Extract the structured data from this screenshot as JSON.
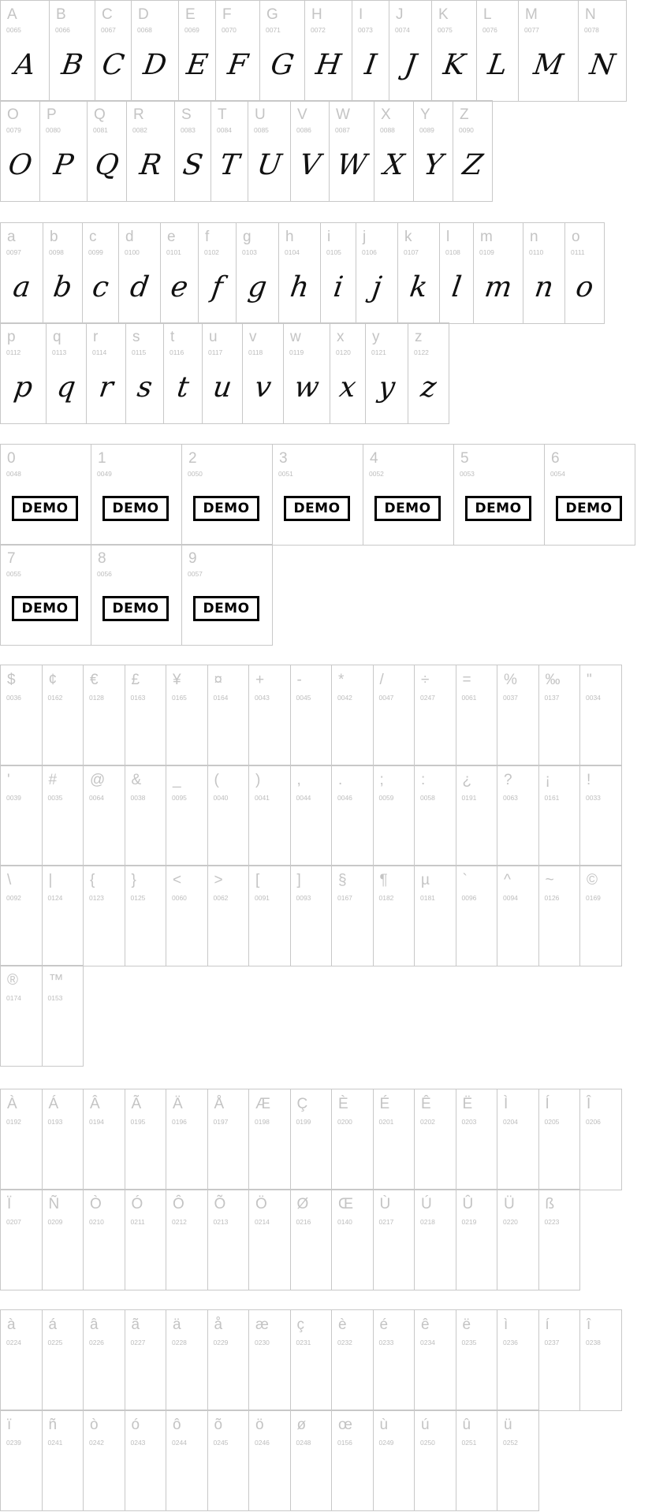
{
  "uppercase": [
    [
      {
        "c": "A",
        "code": "0065"
      },
      {
        "c": "B",
        "code": "0066"
      },
      {
        "c": "C",
        "code": "0067"
      },
      {
        "c": "D",
        "code": "0068"
      },
      {
        "c": "E",
        "code": "0069"
      },
      {
        "c": "F",
        "code": "0070"
      },
      {
        "c": "G",
        "code": "0071"
      },
      {
        "c": "H",
        "code": "0072"
      },
      {
        "c": "I",
        "code": "0073"
      },
      {
        "c": "J",
        "code": "0074"
      },
      {
        "c": "K",
        "code": "0075"
      },
      {
        "c": "L",
        "code": "0076"
      },
      {
        "c": "M",
        "code": "0077"
      },
      {
        "c": "N",
        "code": "0078"
      }
    ],
    [
      {
        "c": "O",
        "code": "0079"
      },
      {
        "c": "P",
        "code": "0080"
      },
      {
        "c": "Q",
        "code": "0081"
      },
      {
        "c": "R",
        "code": "0082"
      },
      {
        "c": "S",
        "code": "0083"
      },
      {
        "c": "T",
        "code": "0084"
      },
      {
        "c": "U",
        "code": "0085"
      },
      {
        "c": "V",
        "code": "0086"
      },
      {
        "c": "W",
        "code": "0087"
      },
      {
        "c": "X",
        "code": "0088"
      },
      {
        "c": "Y",
        "code": "0089"
      },
      {
        "c": "Z",
        "code": "0090"
      }
    ]
  ],
  "lowercase": [
    [
      {
        "c": "a",
        "code": "0097"
      },
      {
        "c": "b",
        "code": "0098"
      },
      {
        "c": "c",
        "code": "0099"
      },
      {
        "c": "d",
        "code": "0100"
      },
      {
        "c": "e",
        "code": "0101"
      },
      {
        "c": "f",
        "code": "0102"
      },
      {
        "c": "g",
        "code": "0103"
      },
      {
        "c": "h",
        "code": "0104"
      },
      {
        "c": "i",
        "code": "0105"
      },
      {
        "c": "j",
        "code": "0106"
      },
      {
        "c": "k",
        "code": "0107"
      },
      {
        "c": "l",
        "code": "0108"
      },
      {
        "c": "m",
        "code": "0109"
      },
      {
        "c": "n",
        "code": "0110"
      },
      {
        "c": "o",
        "code": "0111"
      }
    ],
    [
      {
        "c": "p",
        "code": "0112"
      },
      {
        "c": "q",
        "code": "0113"
      },
      {
        "c": "r",
        "code": "0114"
      },
      {
        "c": "s",
        "code": "0115"
      },
      {
        "c": "t",
        "code": "0116"
      },
      {
        "c": "u",
        "code": "0117"
      },
      {
        "c": "v",
        "code": "0118"
      },
      {
        "c": "w",
        "code": "0119"
      },
      {
        "c": "x",
        "code": "0120"
      },
      {
        "c": "y",
        "code": "0121"
      },
      {
        "c": "z",
        "code": "0122"
      }
    ]
  ],
  "digits": {
    "demo_label": "DEMO",
    "rows": [
      [
        {
          "c": "0",
          "code": "0048"
        },
        {
          "c": "1",
          "code": "0049"
        },
        {
          "c": "2",
          "code": "0050"
        },
        {
          "c": "3",
          "code": "0051"
        },
        {
          "c": "4",
          "code": "0052"
        },
        {
          "c": "5",
          "code": "0053"
        },
        {
          "c": "6",
          "code": "0054"
        }
      ],
      [
        {
          "c": "7",
          "code": "0055"
        },
        {
          "c": "8",
          "code": "0056"
        },
        {
          "c": "9",
          "code": "0057"
        }
      ]
    ]
  },
  "symbols": [
    [
      {
        "c": "$",
        "code": "0036"
      },
      {
        "c": "¢",
        "code": "0162"
      },
      {
        "c": "€",
        "code": "0128"
      },
      {
        "c": "£",
        "code": "0163"
      },
      {
        "c": "¥",
        "code": "0165"
      },
      {
        "c": "¤",
        "code": "0164"
      },
      {
        "c": "+",
        "code": "0043"
      },
      {
        "c": "-",
        "code": "0045"
      },
      {
        "c": "*",
        "code": "0042"
      },
      {
        "c": "/",
        "code": "0047"
      },
      {
        "c": "÷",
        "code": "0247"
      },
      {
        "c": "=",
        "code": "0061"
      },
      {
        "c": "%",
        "code": "0037"
      },
      {
        "c": "‰",
        "code": "0137"
      },
      {
        "c": "\"",
        "code": "0034"
      }
    ],
    [
      {
        "c": "'",
        "code": "0039"
      },
      {
        "c": "#",
        "code": "0035"
      },
      {
        "c": "@",
        "code": "0064"
      },
      {
        "c": "&",
        "code": "0038"
      },
      {
        "c": "_",
        "code": "0095"
      },
      {
        "c": "(",
        "code": "0040"
      },
      {
        "c": ")",
        "code": "0041"
      },
      {
        "c": ",",
        "code": "0044"
      },
      {
        "c": ".",
        "code": "0046"
      },
      {
        "c": ";",
        "code": "0059"
      },
      {
        "c": ":",
        "code": "0058"
      },
      {
        "c": "¿",
        "code": "0191"
      },
      {
        "c": "?",
        "code": "0063"
      },
      {
        "c": "¡",
        "code": "0161"
      },
      {
        "c": "!",
        "code": "0033"
      }
    ],
    [
      {
        "c": "\\",
        "code": "0092"
      },
      {
        "c": "|",
        "code": "0124"
      },
      {
        "c": "{",
        "code": "0123"
      },
      {
        "c": "}",
        "code": "0125"
      },
      {
        "c": "<",
        "code": "0060"
      },
      {
        "c": ">",
        "code": "0062"
      },
      {
        "c": "[",
        "code": "0091"
      },
      {
        "c": "]",
        "code": "0093"
      },
      {
        "c": "§",
        "code": "0167"
      },
      {
        "c": "¶",
        "code": "0182"
      },
      {
        "c": "µ",
        "code": "0181"
      },
      {
        "c": "`",
        "code": "0096"
      },
      {
        "c": "^",
        "code": "0094"
      },
      {
        "c": "~",
        "code": "0126"
      },
      {
        "c": "©",
        "code": "0169"
      }
    ],
    [
      {
        "c": "®",
        "code": "0174"
      },
      {
        "c": "™",
        "code": "0153"
      }
    ]
  ],
  "accented_upper": [
    [
      {
        "c": "À",
        "code": "0192"
      },
      {
        "c": "Á",
        "code": "0193"
      },
      {
        "c": "Â",
        "code": "0194"
      },
      {
        "c": "Ã",
        "code": "0195"
      },
      {
        "c": "Ä",
        "code": "0196"
      },
      {
        "c": "Å",
        "code": "0197"
      },
      {
        "c": "Æ",
        "code": "0198"
      },
      {
        "c": "Ç",
        "code": "0199"
      },
      {
        "c": "È",
        "code": "0200"
      },
      {
        "c": "É",
        "code": "0201"
      },
      {
        "c": "Ê",
        "code": "0202"
      },
      {
        "c": "Ë",
        "code": "0203"
      },
      {
        "c": "Ì",
        "code": "0204"
      },
      {
        "c": "Í",
        "code": "0205"
      },
      {
        "c": "Î",
        "code": "0206"
      }
    ],
    [
      {
        "c": "Ï",
        "code": "0207"
      },
      {
        "c": "Ñ",
        "code": "0209"
      },
      {
        "c": "Ò",
        "code": "0210"
      },
      {
        "c": "Ó",
        "code": "0211"
      },
      {
        "c": "Ô",
        "code": "0212"
      },
      {
        "c": "Õ",
        "code": "0213"
      },
      {
        "c": "Ö",
        "code": "0214"
      },
      {
        "c": "Ø",
        "code": "0216"
      },
      {
        "c": "Œ",
        "code": "0140"
      },
      {
        "c": "Ù",
        "code": "0217"
      },
      {
        "c": "Ú",
        "code": "0218"
      },
      {
        "c": "Û",
        "code": "0219"
      },
      {
        "c": "Ü",
        "code": "0220"
      },
      {
        "c": "ß",
        "code": "0223"
      }
    ]
  ],
  "accented_lower": [
    [
      {
        "c": "à",
        "code": "0224"
      },
      {
        "c": "á",
        "code": "0225"
      },
      {
        "c": "â",
        "code": "0226"
      },
      {
        "c": "ã",
        "code": "0227"
      },
      {
        "c": "ä",
        "code": "0228"
      },
      {
        "c": "å",
        "code": "0229"
      },
      {
        "c": "æ",
        "code": "0230"
      },
      {
        "c": "ç",
        "code": "0231"
      },
      {
        "c": "è",
        "code": "0232"
      },
      {
        "c": "é",
        "code": "0233"
      },
      {
        "c": "ê",
        "code": "0234"
      },
      {
        "c": "ë",
        "code": "0235"
      },
      {
        "c": "ì",
        "code": "0236"
      },
      {
        "c": "í",
        "code": "0237"
      },
      {
        "c": "î",
        "code": "0238"
      }
    ],
    [
      {
        "c": "ï",
        "code": "0239"
      },
      {
        "c": "ñ",
        "code": "0241"
      },
      {
        "c": "ò",
        "code": "0242"
      },
      {
        "c": "ó",
        "code": "0243"
      },
      {
        "c": "ô",
        "code": "0244"
      },
      {
        "c": "õ",
        "code": "0245"
      },
      {
        "c": "ö",
        "code": "0246"
      },
      {
        "c": "ø",
        "code": "0248"
      },
      {
        "c": "œ",
        "code": "0156"
      },
      {
        "c": "ù",
        "code": "0249"
      },
      {
        "c": "ú",
        "code": "0250"
      },
      {
        "c": "û",
        "code": "0251"
      },
      {
        "c": "ü",
        "code": "0252"
      }
    ]
  ]
}
